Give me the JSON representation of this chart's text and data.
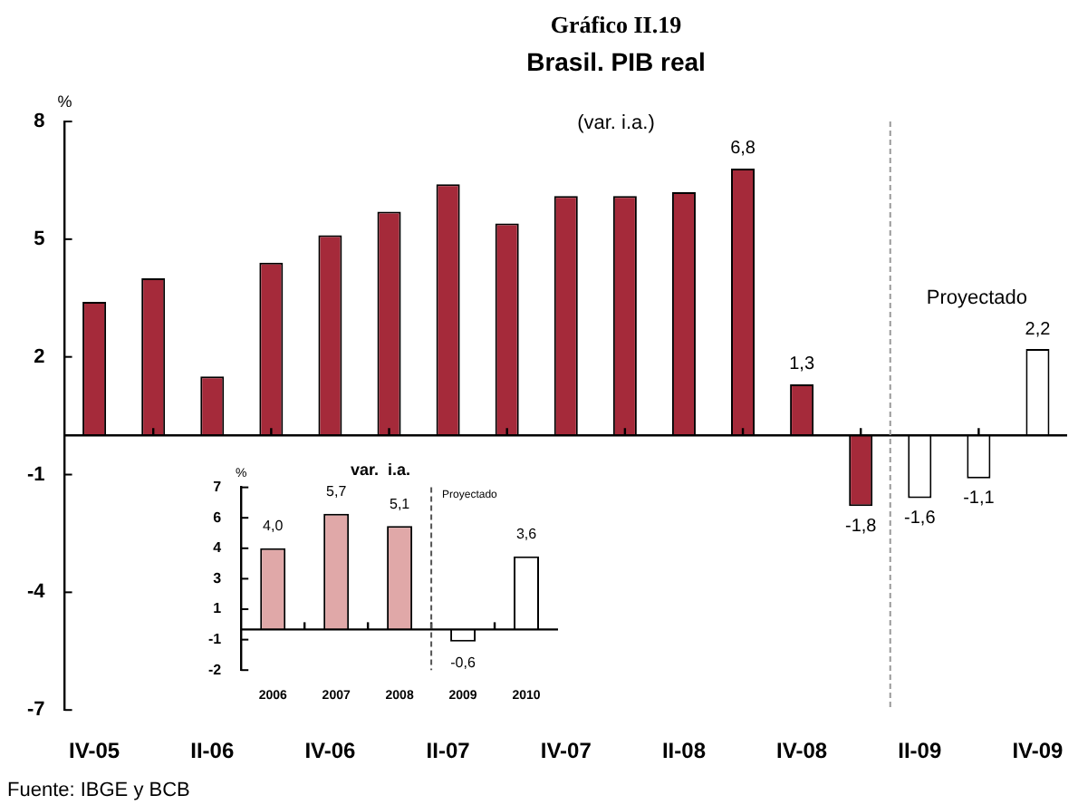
{
  "chart_data": [
    {
      "type": "bar",
      "title": "Gráfico II.19",
      "subtitle": "Brasil. PIB real",
      "ylabel": "%",
      "annotations": [
        "(var. i.a.)",
        "Fuente: IBGE y BCB",
        "Proyectado"
      ],
      "categories": [
        "IV-05",
        null,
        "II-06",
        null,
        "IV-06",
        null,
        "II-07",
        null,
        "IV-07",
        null,
        "II-08",
        null,
        "IV-08",
        null,
        "II-09",
        null,
        "IV-09"
      ],
      "values": [
        3.4,
        4.0,
        1.5,
        4.4,
        5.1,
        5.7,
        6.4,
        5.4,
        6.1,
        6.1,
        6.2,
        6.8,
        1.3,
        -1.8,
        -1.6,
        -1.1,
        2.2
      ],
      "value_labels": [
        null,
        null,
        null,
        null,
        null,
        null,
        null,
        null,
        null,
        null,
        null,
        "6,8",
        "1,3",
        "-1,8",
        "-1,6",
        "-1,1",
        "2,2"
      ],
      "colors": [
        "#a52a3a",
        "#a52a3a",
        "#a52a3a",
        "#a52a3a",
        "#a52a3a",
        "#a52a3a",
        "#a52a3a",
        "#a52a3a",
        "#a52a3a",
        "#a52a3a",
        "#a52a3a",
        "#a52a3a",
        "#a52a3a",
        "#a52a3a",
        "#ffffff",
        "#ffffff",
        "#ffffff"
      ],
      "ylim": [
        -7,
        8
      ],
      "yticks": [
        -7,
        -4,
        -1,
        2,
        5,
        8
      ]
    },
    {
      "type": "bar",
      "title": "var.  i.a.",
      "ylabel": "%",
      "annotations": [
        "Proyectado"
      ],
      "categories": [
        "2006",
        "2007",
        "2008",
        "2009",
        "2010"
      ],
      "values": [
        4.0,
        5.7,
        5.1,
        -0.6,
        3.6
      ],
      "value_labels": [
        "4,0",
        "5,7",
        "5,1",
        "-0,6",
        "3,6"
      ],
      "colors": [
        "#e0a8a8",
        "#e0a8a8",
        "#e0a8a8",
        "#ffffff",
        "#ffffff"
      ],
      "ylim": [
        -2,
        7
      ],
      "yticks": [
        -2,
        {
          "value": -0.5,
          "label": "-1"
        },
        1,
        {
          "value": 2.5,
          "label": "3"
        },
        4,
        {
          "value": 5.5,
          "label": "6"
        },
        7
      ]
    }
  ]
}
